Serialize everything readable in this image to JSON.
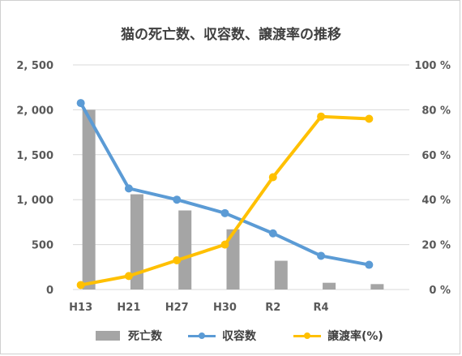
{
  "chart_data": {
    "type": "bar+line",
    "title": "猫の死亡数、収容数、譲渡率の推移",
    "categories": [
      "H13",
      "H21",
      "H27",
      "H30",
      "R2",
      "R4",
      ""
    ],
    "series": [
      {
        "name": "死亡数",
        "kind": "bar",
        "axis": "left",
        "color": "#a5a5a5",
        "values": [
          2000,
          1060,
          880,
          670,
          320,
          75,
          60
        ]
      },
      {
        "name": "収容数",
        "kind": "line",
        "axis": "right",
        "color": "#5b9bd5",
        "values": [
          83,
          45,
          40,
          34,
          25,
          15,
          11
        ]
      },
      {
        "name": "譲渡率(%)",
        "kind": "line",
        "axis": "right",
        "color": "#ffc000",
        "values": [
          2,
          6,
          13,
          20,
          50,
          77,
          76
        ]
      }
    ],
    "y_left": {
      "ylim": [
        0,
        2500
      ],
      "ticks": [
        "0",
        "500",
        "1, 000",
        "1, 500",
        "2, 000",
        "2, 500"
      ]
    },
    "y_right": {
      "ylim": [
        0,
        100
      ],
      "ticks": [
        "0 %",
        "20 %",
        "40 %",
        "60 %",
        "80 %",
        "100 %"
      ]
    },
    "grid": true,
    "legend": "bottom"
  }
}
